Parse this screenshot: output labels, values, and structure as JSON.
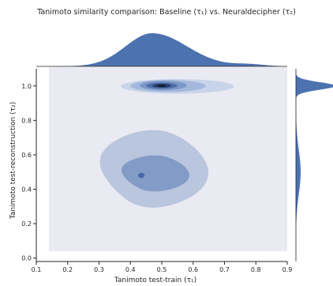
{
  "chart_data": {
    "type": "joint_kde",
    "title": "Tanimoto similarity comparison: Baseline (τ₁) vs. Neuraldecipher (τ₂)",
    "xlabel": "Tanimoto test-train (τ₁)",
    "ylabel": "Tanimoto test-reconstruction (τ₂)",
    "xlim": [
      0.1,
      0.9
    ],
    "ylim": [
      -0.02,
      1.1
    ],
    "x_ticks": [
      "0.1",
      "0.2",
      "0.3",
      "0.4",
      "0.5",
      "0.6",
      "0.7",
      "0.8",
      "0.9"
    ],
    "y_ticks": [
      "0.0",
      "0.2",
      "0.4",
      "0.6",
      "0.8",
      "1.0"
    ],
    "x_tick_values": [
      0.1,
      0.2,
      0.3,
      0.4,
      0.5,
      0.6,
      0.7,
      0.8,
      0.9
    ],
    "y_tick_values": [
      0.0,
      0.2,
      0.4,
      0.6,
      0.8,
      1.0
    ],
    "kde_2d": {
      "background_region": {
        "x": [
          0.14,
          0.9
        ],
        "y": [
          0.04,
          1.11
        ]
      },
      "clusters": [
        {
          "center": [
            0.5,
            1.0
          ],
          "levels": [
            {
              "x": [
                0.37,
                0.73
              ],
              "y": [
                0.955,
                1.04
              ]
            },
            {
              "x": [
                0.4,
                0.64
              ],
              "y": [
                0.965,
                1.035
              ]
            },
            {
              "x": [
                0.43,
                0.58
              ],
              "y": [
                0.975,
                1.03
              ]
            },
            {
              "x": [
                0.45,
                0.55
              ],
              "y": [
                0.983,
                1.02
              ]
            },
            {
              "x": [
                0.47,
                0.53
              ],
              "y": [
                0.99,
                1.013
              ]
            },
            {
              "x": [
                0.485,
                0.515
              ],
              "y": [
                0.995,
                1.007
              ]
            }
          ]
        },
        {
          "center": [
            0.44,
            0.48
          ],
          "levels": [
            {
              "x": [
                0.3,
                0.62
              ],
              "y": [
                0.3,
                0.75
              ]
            },
            {
              "x": [
                0.37,
                0.57
              ],
              "y": [
                0.39,
                0.6
              ]
            },
            {
              "x": [
                0.425,
                0.445
              ],
              "y": [
                0.465,
                0.495
              ]
            }
          ]
        }
      ]
    },
    "marginal_x": {
      "peak": 0.47,
      "range": [
        0.14,
        0.9
      ]
    },
    "marginal_y": {
      "peak": 1.0,
      "range": [
        0.2,
        1.11
      ]
    },
    "colors": {
      "fill": "#4c72b0",
      "dark": "#0d1a33",
      "background": "#eaeaf2"
    }
  }
}
